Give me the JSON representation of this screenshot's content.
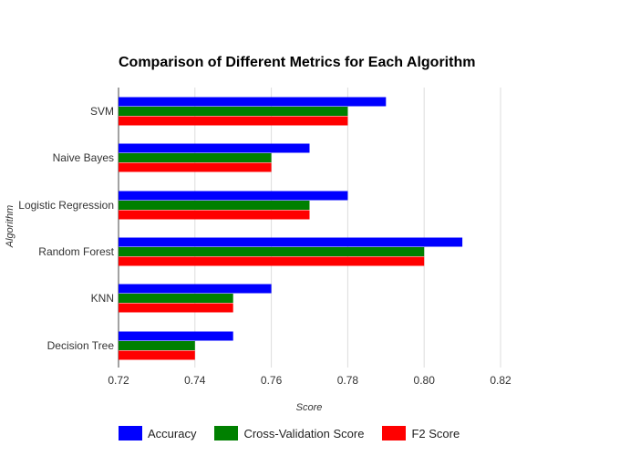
{
  "chart_data": {
    "type": "bar",
    "orientation": "horizontal",
    "title": "Comparison of Different Metrics for Each Algorithm",
    "xlabel": "Score",
    "ylabel": "Algorithm",
    "categories": [
      "SVM",
      "Naive Bayes",
      "Logistic Regression",
      "Random Forest",
      "KNN",
      "Decision Tree"
    ],
    "series": [
      {
        "name": "Accuracy",
        "color": "#0000ff",
        "values": [
          0.79,
          0.77,
          0.78,
          0.81,
          0.76,
          0.75
        ]
      },
      {
        "name": "Cross-Validation Score",
        "color": "#008000",
        "values": [
          0.78,
          0.76,
          0.77,
          0.8,
          0.75,
          0.74
        ]
      },
      {
        "name": "F2 Score",
        "color": "#ff0000",
        "values": [
          0.78,
          0.76,
          0.77,
          0.8,
          0.75,
          0.74
        ]
      }
    ],
    "xlim": [
      0.72,
      0.82
    ],
    "xticks": [
      "0.72",
      "0.74",
      "0.76",
      "0.78",
      "0.80",
      "0.82"
    ],
    "xtick_values": [
      0.72,
      0.74,
      0.76,
      0.78,
      0.8,
      0.82
    ],
    "grid": true,
    "legend_position": "bottom"
  }
}
